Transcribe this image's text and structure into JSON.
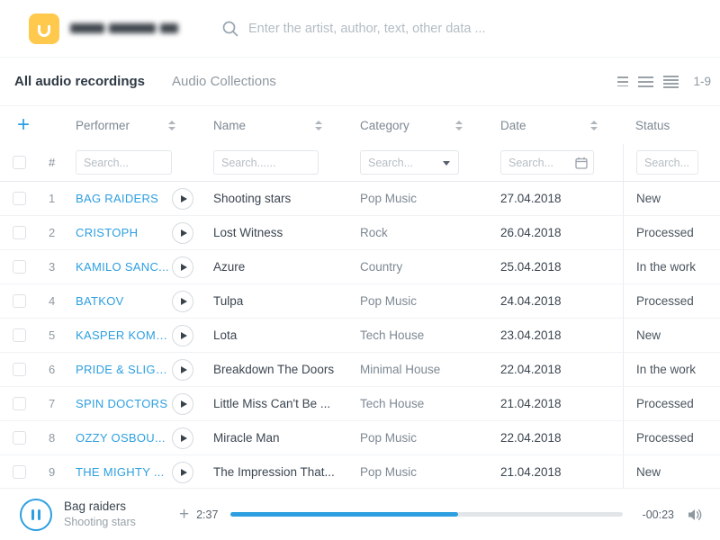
{
  "colors": {
    "accent": "#2d9fe0",
    "logo_yellow": "#ffc94d"
  },
  "header": {
    "search_placeholder": "Enter the artist, author, text, other data ..."
  },
  "tabs": {
    "all_audio_label": "All audio recordings",
    "collections_label": "Audio Collections",
    "result_range": "1-9"
  },
  "toolbar": {
    "add_label": "+"
  },
  "icons": {
    "search": "magnifier",
    "sort": "up-down-carets",
    "category_dropdown": "caret-down",
    "date_filter": "calendar",
    "row_play": "play-circle",
    "player_pause": "pause-circle",
    "player_add": "+",
    "volume": "speaker-waves"
  },
  "table": {
    "number_header": "#",
    "columns": [
      {
        "label": "Performer",
        "filter_placeholder": "Search..."
      },
      {
        "label": "Name",
        "filter_placeholder": "Search......"
      },
      {
        "label": "Category",
        "filter_placeholder": "Search..."
      },
      {
        "label": "Date",
        "filter_placeholder": "Search..."
      },
      {
        "label": "Status",
        "filter_placeholder": "Search..."
      }
    ],
    "rows": [
      {
        "num": "1",
        "performer": "BAG RAIDERS",
        "name": "Shooting stars",
        "category": "Pop Music",
        "date": "27.04.2018",
        "status": "New"
      },
      {
        "num": "2",
        "performer": "CRISTOPH",
        "name": "Lost Witness",
        "category": "Rock",
        "date": "26.04.2018",
        "status": "Processed"
      },
      {
        "num": "3",
        "performer": "KAMILO SANC...",
        "name": "Azure",
        "category": "Country",
        "date": "25.04.2018",
        "status": "In the work"
      },
      {
        "num": "4",
        "performer": "BATKOV",
        "name": "Tulpa",
        "category": "Pop Music",
        "date": "24.04.2018",
        "status": "Processed"
      },
      {
        "num": "5",
        "performer": "KASPER KOMAN",
        "name": "Lota",
        "category": "Tech House",
        "date": "23.04.2018",
        "status": "New"
      },
      {
        "num": "6",
        "performer": "PRIDE & SLIGH...",
        "name": "Breakdown The Doors",
        "category": "Minimal House",
        "date": "22.04.2018",
        "status": "In the work"
      },
      {
        "num": "7",
        "performer": "SPIN DOCTORS",
        "name": "Little Miss Can't Be ...",
        "category": "Tech House",
        "date": "21.04.2018",
        "status": "Processed"
      },
      {
        "num": "8",
        "performer": "OZZY OSBOU...",
        "name": "Miracle Man",
        "category": "Pop Music",
        "date": "22.04.2018",
        "status": "Processed"
      },
      {
        "num": "9",
        "performer": "THE MIGHTY ...",
        "name": "The Impression That...",
        "category": "Pop Music",
        "date": "21.04.2018",
        "status": "New"
      }
    ]
  },
  "player": {
    "track_title": "Bag raiders",
    "track_subtitle": "Shooting stars",
    "add_label": "+",
    "elapsed": "2:37",
    "remaining": "-00:23",
    "progress_percent": 58
  }
}
